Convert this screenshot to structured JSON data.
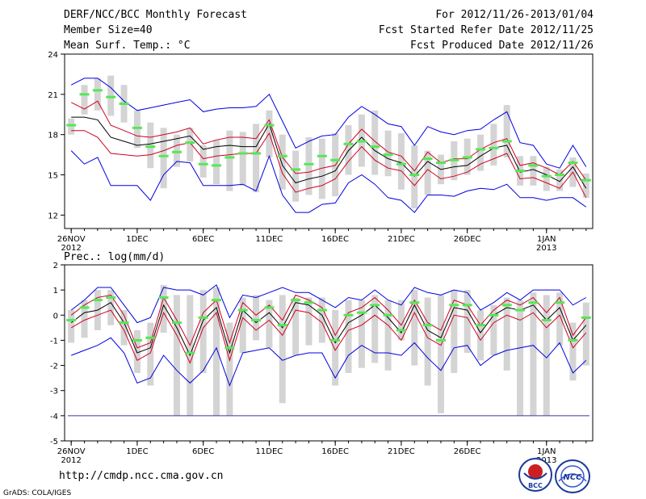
{
  "header": {
    "title": "DERF/NCC/BCC Monthly Forecast",
    "member_size": "Member Size=40",
    "variable1": "Mean Surf. Temp.: °C",
    "period": "For 2012/11/26-2013/01/04",
    "started": "Fcst Started Refer Date 2012/11/25",
    "produced": "Fcst Produced Date 2012/11/26"
  },
  "footer": {
    "url": "http://cmdp.ncc.cma.gov.cn",
    "grads": "GrADS: COLA/IGES",
    "logo1": "BCC",
    "logo2": "NCC"
  },
  "colors": {
    "box": "#d4d4d4",
    "mean": "#55e855",
    "median": "#000000",
    "inner": "#d00020",
    "outer": "#0000e0"
  },
  "chart_data": [
    {
      "type": "line",
      "title": "Mean Surf. Temp.: °C",
      "xlabel": "",
      "ylabel": "",
      "days": 40,
      "ylim": [
        11,
        24
      ],
      "yticks": [
        12,
        15,
        18,
        21,
        24
      ],
      "xticks": [
        {
          "day": 0,
          "label": "26NOV",
          "label2": "2012"
        },
        {
          "day": 5,
          "label": "1DEC"
        },
        {
          "day": 10,
          "label": "6DEC"
        },
        {
          "day": 15,
          "label": "11DEC"
        },
        {
          "day": 20,
          "label": "16DEC"
        },
        {
          "day": 25,
          "label": "21DEC"
        },
        {
          "day": 30,
          "label": "26DEC"
        },
        {
          "day": 36,
          "label": "1JAN",
          "label2": "2013"
        }
      ],
      "box_low": [
        18.0,
        19.5,
        19.8,
        19.4,
        18.9,
        17.0,
        15.5,
        14.0,
        15.6,
        16.0,
        14.8,
        14.3,
        13.8,
        14.2,
        13.7,
        16.3,
        13.9,
        13.0,
        13.5,
        13.2,
        13.4,
        15.0,
        15.6,
        15.0,
        14.9,
        13.9,
        12.5,
        13.5,
        14.3,
        14.6,
        15.0,
        15.3,
        15.7,
        16.3,
        14.2,
        14.2,
        13.8,
        13.8,
        14.1,
        13.3
      ],
      "box_high": [
        19.2,
        21.7,
        22.2,
        22.4,
        21.7,
        19.8,
        18.9,
        18.5,
        18.0,
        18.5,
        17.2,
        17.6,
        18.3,
        18.2,
        18.8,
        19.8,
        18.0,
        16.8,
        17.8,
        17.7,
        18.1,
        18.7,
        19.5,
        19.8,
        18.3,
        18.1,
        17.2,
        16.8,
        16.5,
        17.5,
        17.7,
        18.0,
        18.8,
        20.2,
        16.4,
        16.4,
        15.6,
        15.4,
        16.3,
        15.1
      ],
      "mean": [
        18.7,
        21.0,
        21.3,
        20.8,
        20.3,
        18.5,
        17.1,
        16.4,
        16.7,
        17.4,
        15.8,
        15.7,
        16.3,
        16.6,
        16.6,
        18.7,
        16.4,
        15.4,
        15.8,
        16.4,
        16.1,
        17.3,
        17.5,
        17.1,
        16.5,
        15.8,
        15.0,
        16.2,
        15.9,
        16.1,
        16.3,
        16.9,
        17.0,
        17.5,
        15.3,
        15.7,
        14.9,
        15.0,
        15.9,
        14.6
      ],
      "median": [
        19.3,
        19.3,
        19.1,
        17.8,
        17.5,
        17.2,
        17.3,
        17.5,
        17.7,
        17.9,
        16.9,
        17.1,
        17.2,
        17.1,
        17.1,
        18.8,
        15.7,
        14.4,
        14.7,
        14.9,
        15.3,
        16.8,
        17.8,
        16.8,
        16.2,
        15.9,
        14.9,
        16.0,
        15.4,
        15.6,
        15.7,
        16.4,
        17.0,
        17.2,
        15.2,
        15.4,
        15.0,
        14.5,
        15.6,
        14.0
      ],
      "p_high": [
        20.4,
        19.9,
        20.5,
        18.7,
        18.3,
        17.9,
        17.8,
        18.0,
        18.2,
        18.5,
        17.3,
        17.6,
        17.8,
        17.8,
        17.7,
        19.1,
        16.3,
        15.1,
        15.2,
        15.5,
        15.7,
        17.3,
        18.4,
        17.5,
        16.7,
        16.4,
        15.3,
        16.7,
        15.9,
        16.2,
        16.2,
        16.9,
        17.4,
        17.7,
        15.7,
        15.9,
        15.5,
        15.0,
        16.0,
        14.6
      ],
      "p_low": [
        18.3,
        18.3,
        17.8,
        16.6,
        16.5,
        16.4,
        16.5,
        16.8,
        17.2,
        17.4,
        16.2,
        16.4,
        16.5,
        16.6,
        16.6,
        18.1,
        15.1,
        13.7,
        14.0,
        14.2,
        14.7,
        16.0,
        17.1,
        16.1,
        15.5,
        15.3,
        14.2,
        15.4,
        14.7,
        14.9,
        15.2,
        15.8,
        16.2,
        16.6,
        14.7,
        14.8,
        14.4,
        14.0,
        15.2,
        13.3
      ],
      "max": [
        21.7,
        22.2,
        22.2,
        21.5,
        20.5,
        19.8,
        20.0,
        20.2,
        20.4,
        20.6,
        19.7,
        19.9,
        20.0,
        20.0,
        20.1,
        21.0,
        19.0,
        17.0,
        17.5,
        17.9,
        18.0,
        19.3,
        20.1,
        19.5,
        18.8,
        18.6,
        17.2,
        18.6,
        18.2,
        18.0,
        18.3,
        18.4,
        19.1,
        19.7,
        17.4,
        17.2,
        15.8,
        15.5,
        17.2,
        15.6
      ],
      "min": [
        16.8,
        15.8,
        16.3,
        14.2,
        14.2,
        14.2,
        13.1,
        15.0,
        16.0,
        15.9,
        14.2,
        14.2,
        14.2,
        14.3,
        13.8,
        16.4,
        13.5,
        12.2,
        12.2,
        12.8,
        12.9,
        14.4,
        15.0,
        14.3,
        13.3,
        13.1,
        12.2,
        13.5,
        13.5,
        13.4,
        13.8,
        14.0,
        13.9,
        14.3,
        13.3,
        13.3,
        13.1,
        13.3,
        13.3,
        12.6
      ]
    },
    {
      "type": "line",
      "title": "Prec.: log(mm/d)",
      "xlabel": "",
      "ylabel": "",
      "days": 40,
      "ylim": [
        -5,
        2
      ],
      "yticks": [
        -5,
        -4,
        -3,
        -2,
        -1,
        0,
        1,
        2
      ],
      "xticks": [
        {
          "day": 0,
          "label": "26NOV",
          "label2": "2012"
        },
        {
          "day": 5,
          "label": "1DEC"
        },
        {
          "day": 10,
          "label": "6DEC"
        },
        {
          "day": 15,
          "label": "11DEC"
        },
        {
          "day": 20,
          "label": "16DEC"
        },
        {
          "day": 25,
          "label": "21DEC"
        },
        {
          "day": 30,
          "label": "26DEC"
        },
        {
          "day": 36,
          "label": "1JAN",
          "label2": "2013"
        }
      ],
      "floor_line": -4,
      "box_low": [
        -1.1,
        -0.9,
        -0.6,
        -0.4,
        -1.2,
        -2.3,
        -2.8,
        -0.7,
        -4.0,
        -4.0,
        -2.3,
        -4.0,
        -4.0,
        -1.5,
        -1.0,
        -1.3,
        -3.5,
        -1.6,
        -1.2,
        -1.1,
        -2.8,
        -2.3,
        -2.1,
        -1.9,
        -2.2,
        -1.0,
        -2.0,
        -2.8,
        -3.9,
        -2.3,
        -1.5,
        -1.8,
        -1.6,
        -2.2,
        -4.0,
        -4.0,
        -4.0,
        -1.2,
        -2.6,
        -2.0
      ],
      "box_high": [
        0.2,
        0.6,
        1.0,
        1.0,
        0.2,
        -0.6,
        -0.3,
        1.2,
        0.8,
        0.8,
        1.0,
        1.1,
        -0.3,
        0.7,
        0.8,
        0.6,
        0.8,
        0.7,
        0.7,
        0.7,
        0.2,
        0.6,
        0.6,
        0.8,
        0.6,
        0.6,
        1.0,
        0.7,
        0.8,
        1.0,
        1.0,
        0.2,
        0.4,
        0.7,
        0.6,
        0.9,
        0.8,
        0.9,
        -0.3,
        0.5
      ],
      "mean": [
        -0.2,
        0.3,
        0.6,
        0.7,
        -0.3,
        -1.0,
        -0.9,
        0.7,
        -0.3,
        -1.5,
        -0.1,
        0.6,
        -1.3,
        0.2,
        -0.2,
        0.3,
        -0.4,
        0.6,
        0.5,
        0.2,
        -1.0,
        0.0,
        0.1,
        0.4,
        0.0,
        -0.6,
        0.5,
        -0.4,
        -1.0,
        0.4,
        0.4,
        -0.4,
        0.0,
        0.4,
        0.2,
        0.5,
        -0.2,
        0.5,
        -1.0,
        -0.1
      ],
      "median": [
        -0.3,
        0.1,
        0.2,
        0.5,
        -0.3,
        -1.5,
        -1.3,
        0.4,
        -0.5,
        -1.6,
        -0.2,
        0.3,
        -1.5,
        0.2,
        -0.3,
        0.1,
        -0.5,
        0.5,
        0.4,
        0.0,
        -1.1,
        -0.3,
        0.0,
        0.4,
        -0.1,
        -0.7,
        0.4,
        -0.6,
        -0.9,
        0.3,
        0.2,
        -0.7,
        0.0,
        0.3,
        0.2,
        0.4,
        -0.2,
        0.3,
        -1.0,
        -0.4
      ],
      "p_high": [
        0.0,
        0.4,
        0.7,
        0.8,
        0.0,
        -1.3,
        -1.1,
        0.7,
        -0.2,
        -1.2,
        0.1,
        0.6,
        -1.1,
        0.5,
        0.0,
        0.4,
        -0.2,
        0.8,
        0.6,
        0.3,
        -0.8,
        0.1,
        0.3,
        0.7,
        0.2,
        -0.4,
        0.6,
        -0.3,
        -0.6,
        0.6,
        0.4,
        -0.4,
        0.2,
        0.6,
        0.4,
        0.7,
        0.1,
        0.7,
        -0.8,
        -0.1
      ],
      "p_low": [
        -0.5,
        -0.2,
        0.0,
        0.2,
        -0.6,
        -1.8,
        -1.5,
        0.1,
        -0.8,
        -1.9,
        -0.5,
        0.1,
        -1.8,
        -0.1,
        -0.6,
        -0.2,
        -0.8,
        0.2,
        0.1,
        -0.3,
        -1.4,
        -0.6,
        -0.4,
        0.0,
        -0.4,
        -1.0,
        0.1,
        -0.9,
        -1.2,
        0.0,
        -0.1,
        -1.0,
        -0.3,
        0.0,
        -0.2,
        0.1,
        -0.5,
        0.0,
        -1.3,
        -0.7
      ],
      "max": [
        0.2,
        0.6,
        1.1,
        1.1,
        0.4,
        -0.3,
        -0.1,
        1.1,
        1.0,
        1.0,
        0.8,
        1.2,
        -0.1,
        0.8,
        0.7,
        0.9,
        1.1,
        0.9,
        0.9,
        0.6,
        0.3,
        0.7,
        0.6,
        1.0,
        0.6,
        0.4,
        1.1,
        0.9,
        0.8,
        1.0,
        0.9,
        0.2,
        0.5,
        0.9,
        0.6,
        1.0,
        1.0,
        1.0,
        0.4,
        0.7
      ],
      "min": [
        -1.6,
        -1.4,
        -1.2,
        -0.9,
        -1.5,
        -2.7,
        -2.5,
        -1.6,
        -2.2,
        -2.7,
        -2.2,
        -1.3,
        -2.8,
        -1.5,
        -1.4,
        -1.3,
        -1.8,
        -1.6,
        -1.5,
        -1.5,
        -2.5,
        -1.6,
        -1.2,
        -1.5,
        -1.5,
        -1.6,
        -1.1,
        -1.7,
        -2.2,
        -1.3,
        -1.2,
        -2.0,
        -1.6,
        -1.4,
        -1.3,
        -1.2,
        -1.7,
        -1.1,
        -2.3,
        -1.8
      ]
    }
  ]
}
